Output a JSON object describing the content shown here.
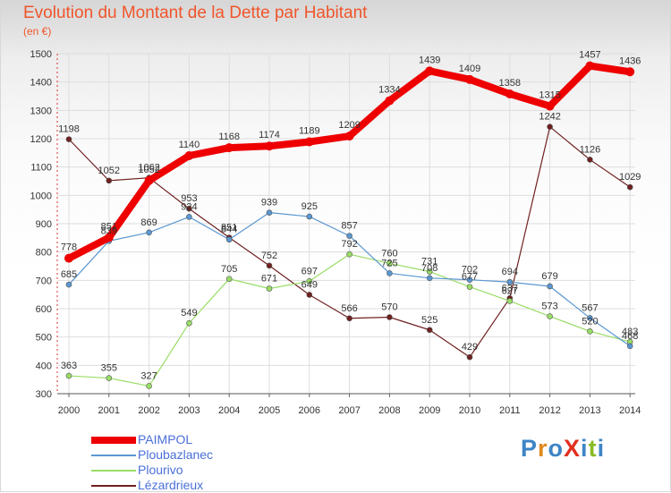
{
  "chart_data": {
    "type": "line",
    "title": "Evolution du Montant de la Dette par Habitant",
    "subtitle": "(en €)",
    "x": [
      "2000",
      "2001",
      "2002",
      "2003",
      "2004",
      "2005",
      "2006",
      "2007",
      "2008",
      "2009",
      "2010",
      "2011",
      "2012",
      "2013",
      "2014"
    ],
    "ylim": [
      300,
      1500
    ],
    "yticks": [
      300,
      400,
      500,
      600,
      700,
      800,
      900,
      1000,
      1100,
      1200,
      1300,
      1400,
      1500
    ],
    "grid": true,
    "legend_position": "bottom-left",
    "series": [
      {
        "name": "PAIMPOL",
        "color": "#ee0000",
        "values": [
          778,
          851,
          1052,
          1140,
          1168,
          1174,
          1189,
          1209,
          1334,
          1439,
          1409,
          1358,
          1315,
          1457,
          1436
        ]
      },
      {
        "name": "Ploubazlanec",
        "color": "#5b97d1",
        "values": [
          685,
          839,
          869,
          924,
          844,
          939,
          925,
          857,
          725,
          708,
          702,
          694,
          679,
          567,
          468
        ]
      },
      {
        "name": "Plourivo",
        "color": "#99dd66",
        "values": [
          363,
          355,
          327,
          549,
          705,
          671,
          697,
          792,
          760,
          731,
          677,
          627,
          573,
          520,
          483
        ]
      },
      {
        "name": "Lézardrieux",
        "color": "#702020",
        "values": [
          1198,
          1052,
          1062,
          953,
          851,
          752,
          649,
          566,
          570,
          525,
          429,
          637,
          1242,
          1126,
          1029
        ]
      }
    ]
  },
  "logo": {
    "text": "ProXiti",
    "colors": [
      "#3d85c6",
      "#e08a1e",
      "#3d85c6",
      "#e03020",
      "#3d85c6",
      "#88bb22",
      "#3d85c6"
    ]
  }
}
